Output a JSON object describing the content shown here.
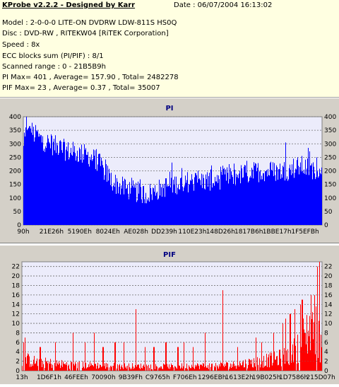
{
  "header": {
    "app_title": "KProbe v2.2.2 - Designed by Karr",
    "date": "Date : 06/07/2004 16:13:02",
    "model": "Model : 2-0-0-0 LITE-ON DVDRW LDW-811S   HS0Q",
    "disc": "Disc : DVD-RW , RITEKW04 [RiTEK Corporation]",
    "speed": "Speed : 8x",
    "ecc": "ECC blocks sum (PI/PIF) : 8/1",
    "range": "Scanned range : 0 - 21B5B9h",
    "pi_stats": "PI Max= 401 , Average= 157.90 , Total= 2482278",
    "pif_stats": "PIF Max= 23 , Average= 0.37 , Total= 35007"
  },
  "chart_data": [
    {
      "type": "area",
      "title": "PI",
      "color": "#0000ff",
      "plot_bg": "#ececfb",
      "ylim": [
        0,
        400
      ],
      "yticks": [
        0,
        50,
        100,
        150,
        200,
        250,
        300,
        350,
        400
      ],
      "x_tick_labels": [
        "90h",
        "21E26h",
        "5190Eh",
        "8024Eh",
        "AE028h",
        "DD239h",
        "110E23h",
        "148D26h",
        "1817B6h",
        "1BBE17h",
        "1F5EFBh"
      ],
      "profile": [
        [
          0,
          280
        ],
        [
          0.015,
          385
        ],
        [
          0.03,
          340
        ],
        [
          0.06,
          315
        ],
        [
          0.1,
          295
        ],
        [
          0.15,
          272
        ],
        [
          0.2,
          262
        ],
        [
          0.24,
          245
        ],
        [
          0.27,
          205
        ],
        [
          0.3,
          158
        ],
        [
          0.33,
          140
        ],
        [
          0.37,
          125
        ],
        [
          0.41,
          113
        ],
        [
          0.44,
          125
        ],
        [
          0.47,
          140
        ],
        [
          0.5,
          150
        ],
        [
          0.55,
          160
        ],
        [
          0.6,
          162
        ],
        [
          0.65,
          168
        ],
        [
          0.7,
          180
        ],
        [
          0.75,
          190
        ],
        [
          0.8,
          200
        ],
        [
          0.85,
          198
        ],
        [
          0.9,
          205
        ],
        [
          0.93,
          218
        ],
        [
          0.96,
          208
        ],
        [
          1.0,
          205
        ]
      ],
      "spikes": [
        [
          0.009,
          401
        ],
        [
          0.02,
          365
        ],
        [
          0.045,
          345
        ],
        [
          0.88,
          305
        ],
        [
          0.955,
          285
        ],
        [
          0.63,
          220
        ]
      ]
    },
    {
      "type": "bar",
      "title": "PIF",
      "color": "#ff0000",
      "plot_bg": "#ececfb",
      "ylim": [
        0,
        23
      ],
      "yticks": [
        0,
        2,
        4,
        6,
        8,
        10,
        12,
        14,
        16,
        18,
        20,
        22
      ],
      "x_tick_labels": [
        "13h",
        "1D6F1h",
        "46FEEh",
        "70090h",
        "9B39Fh",
        "C9765h",
        "F706Eh",
        "1296EBh",
        "1613E2h",
        "19B025h",
        "1D7586h",
        "215D07h"
      ],
      "profile": [
        [
          0,
          2.5
        ],
        [
          0.05,
          1.8
        ],
        [
          0.15,
          1.3
        ],
        [
          0.3,
          1.0
        ],
        [
          0.5,
          0.9
        ],
        [
          0.7,
          1.2
        ],
        [
          0.8,
          2.0
        ],
        [
          0.85,
          2.5
        ],
        [
          0.9,
          3.5
        ],
        [
          0.93,
          6
        ],
        [
          0.96,
          9
        ],
        [
          0.98,
          10
        ],
        [
          1.0,
          4
        ]
      ],
      "spikes": [
        [
          0.004,
          6
        ],
        [
          0.01,
          7
        ],
        [
          0.06,
          5
        ],
        [
          0.11,
          6
        ],
        [
          0.17,
          8
        ],
        [
          0.21,
          6
        ],
        [
          0.24,
          8
        ],
        [
          0.27,
          5
        ],
        [
          0.31,
          6
        ],
        [
          0.34,
          6
        ],
        [
          0.38,
          13
        ],
        [
          0.41,
          5
        ],
        [
          0.44,
          5
        ],
        [
          0.48,
          6
        ],
        [
          0.52,
          5
        ],
        [
          0.54,
          6
        ],
        [
          0.57,
          5
        ],
        [
          0.61,
          8
        ],
        [
          0.67,
          17
        ],
        [
          0.72,
          5
        ],
        [
          0.78,
          7
        ],
        [
          0.8,
          6
        ],
        [
          0.84,
          8
        ],
        [
          0.87,
          10
        ],
        [
          0.88,
          11
        ],
        [
          0.895,
          12
        ],
        [
          0.91,
          13
        ],
        [
          0.93,
          14
        ],
        [
          0.935,
          15
        ],
        [
          0.965,
          16
        ],
        [
          0.985,
          22
        ],
        [
          0.992,
          23
        ]
      ]
    }
  ]
}
